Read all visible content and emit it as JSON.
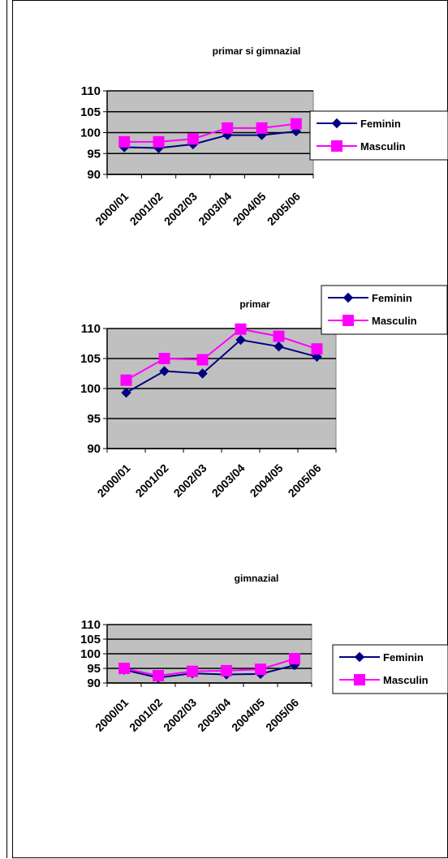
{
  "chart_data": [
    {
      "type": "line",
      "title": "primar si gimnazial",
      "categories": [
        "2000/01",
        "2001/02",
        "2002/03",
        "2003/04",
        "2004/05",
        "2005/06"
      ],
      "ylim": [
        90,
        110
      ],
      "yticks": [
        90,
        95,
        100,
        105,
        110
      ],
      "grid": true,
      "legend": "right",
      "series": [
        {
          "name": "Feminin",
          "color": "#000080",
          "marker": "diamond",
          "values": [
            96.5,
            96.3,
            97.2,
            99.4,
            99.4,
            100.3
          ]
        },
        {
          "name": "Masculin",
          "color": "#FF00FF",
          "marker": "square",
          "values": [
            97.8,
            97.8,
            98.5,
            101.1,
            101.1,
            102.1
          ]
        }
      ]
    },
    {
      "type": "line",
      "title": "primar",
      "categories": [
        "2000/01",
        "2001/02",
        "2002/03",
        "2003/04",
        "2004/05",
        "2005/06"
      ],
      "ylim": [
        90,
        110
      ],
      "yticks": [
        90,
        95,
        100,
        105,
        110
      ],
      "grid": true,
      "legend": "top-right",
      "series": [
        {
          "name": "Feminin",
          "color": "#000080",
          "marker": "diamond",
          "values": [
            99.3,
            102.9,
            102.5,
            108.1,
            107.0,
            105.3
          ]
        },
        {
          "name": "Masculin",
          "color": "#FF00FF",
          "marker": "square",
          "values": [
            101.4,
            105.0,
            104.8,
            109.9,
            108.7,
            106.6
          ]
        }
      ]
    },
    {
      "type": "line",
      "title": "gimnazial",
      "categories": [
        "2000/01",
        "2001/02",
        "2002/03",
        "2003/04",
        "2004/05",
        "2005/06"
      ],
      "ylim": [
        90,
        110
      ],
      "yticks": [
        90,
        95,
        100,
        105,
        110
      ],
      "grid": true,
      "legend": "right",
      "series": [
        {
          "name": "Feminin",
          "color": "#000080",
          "marker": "diamond",
          "values": [
            94.5,
            91.8,
            93.3,
            92.9,
            93.1,
            96.1
          ]
        },
        {
          "name": "Masculin",
          "color": "#FF00FF",
          "marker": "square",
          "values": [
            95.0,
            92.5,
            94.0,
            94.2,
            94.7,
            98.3
          ]
        }
      ]
    }
  ]
}
